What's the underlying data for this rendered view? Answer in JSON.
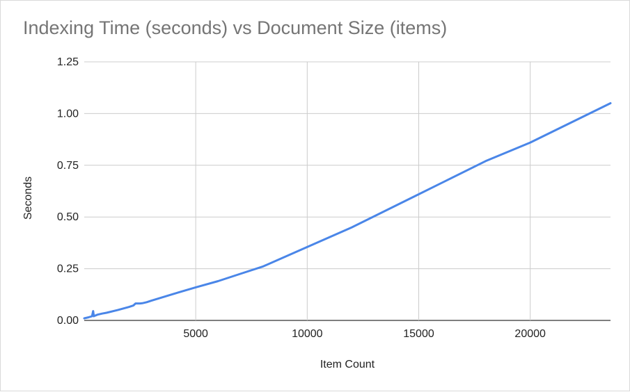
{
  "chart_data": {
    "type": "line",
    "title": "Indexing Time (seconds) vs Document Size (items)",
    "xlabel": "Item Count",
    "ylabel": "Seconds",
    "xlim": [
      0,
      23600
    ],
    "ylim": [
      0,
      1.25
    ],
    "x_ticks": [
      5000,
      10000,
      15000,
      20000
    ],
    "x_tick_labels": [
      "5000",
      "10000",
      "15000",
      "20000"
    ],
    "y_ticks": [
      0,
      0.25,
      0.5,
      0.75,
      1.0,
      1.25
    ],
    "y_tick_labels": [
      "0.00",
      "0.25",
      "0.50",
      "0.75",
      "1.00",
      "1.25"
    ],
    "grid": true,
    "legend": "none",
    "series_color": "#4a86e8",
    "series": [
      {
        "x": [
          0,
          200,
          350,
          400,
          430,
          460,
          600,
          800,
          1000,
          1500,
          2000,
          2200,
          2300,
          2500,
          2600,
          2800,
          3000,
          4000,
          5000,
          6000,
          7000,
          8000,
          10000,
          12000,
          15000,
          18000,
          20000,
          23600
        ],
        "y": [
          0.01,
          0.015,
          0.02,
          0.045,
          0.02,
          0.022,
          0.028,
          0.033,
          0.037,
          0.05,
          0.065,
          0.072,
          0.082,
          0.082,
          0.083,
          0.088,
          0.095,
          0.128,
          0.16,
          0.19,
          0.225,
          0.26,
          0.355,
          0.45,
          0.61,
          0.77,
          0.86,
          1.05
        ]
      }
    ]
  }
}
